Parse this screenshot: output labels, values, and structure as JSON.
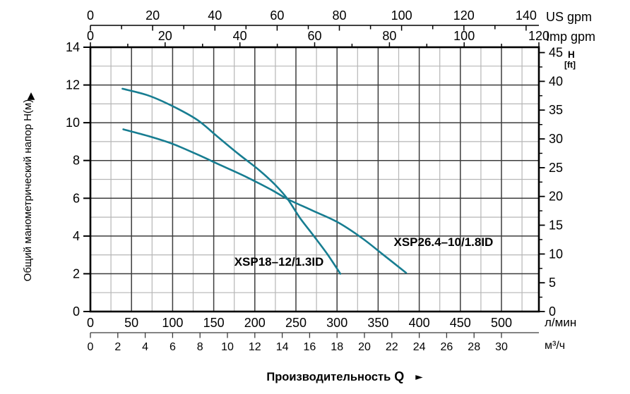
{
  "chart_data": {
    "type": "line",
    "x_range_lmin": [
      0,
      545.5
    ],
    "y_range_m": [
      0,
      14
    ],
    "axes": {
      "top_us_gpm": {
        "label": "US gpm",
        "tick_labels": [
          0,
          20,
          40,
          60,
          80,
          100,
          120,
          140
        ],
        "minor_step": 10,
        "max": 140
      },
      "top_imp_gpm": {
        "label": "Imp gpm",
        "tick_labels": [
          0,
          20,
          40,
          60,
          80,
          100,
          120
        ],
        "minor_step": 10,
        "max": 120
      },
      "left_head_m": {
        "label": "Общий манометрический напор Н(м)",
        "arrow": "▲",
        "tick_labels": [
          0,
          2,
          4,
          6,
          8,
          10,
          12,
          14
        ]
      },
      "right_head_ft": {
        "label": "H",
        "sublabel": "[ft]",
        "tick_labels": [
          0,
          5,
          10,
          15,
          20,
          25,
          30,
          35,
          40,
          45
        ],
        "minor_step": 2.5
      },
      "bottom_lmin": {
        "label": "л/мин",
        "tick_labels": [
          0,
          50,
          100,
          150,
          200,
          250,
          300,
          350,
          400,
          450,
          500
        ]
      },
      "bottom_m3h": {
        "label": "м³/ч",
        "tick_labels": [
          0,
          2,
          4,
          6,
          8,
          10,
          12,
          14,
          16,
          18,
          20,
          22,
          24,
          26,
          28,
          30
        ]
      }
    },
    "xlabel": {
      "text": "Производительность",
      "symbol": "Q",
      "arrow": "►"
    },
    "grid": {
      "major_x_step_lmin": 50,
      "minor_x_step_lmin": 25,
      "major_y_step_m": 2,
      "minor_y_step_m": 1
    },
    "series": [
      {
        "id": "xsp18",
        "name": "XSP18–12/1.3ID",
        "points_lmin_m": [
          [
            39,
            11.8
          ],
          [
            70,
            11.45
          ],
          [
            100,
            10.88
          ],
          [
            130,
            10.15
          ],
          [
            155,
            9.25
          ],
          [
            180,
            8.35
          ],
          [
            205,
            7.5
          ],
          [
            225,
            6.7
          ],
          [
            240,
            5.95
          ],
          [
            255,
            4.95
          ],
          [
            270,
            4.1
          ],
          [
            288,
            3.05
          ],
          [
            304,
            2.0
          ]
        ],
        "label_at_lmin_m": [
          175,
          2.43
        ]
      },
      {
        "id": "xsp26-4",
        "name": "XSP26.4–10/1.8ID",
        "points_lmin_m": [
          [
            40,
            9.65
          ],
          [
            70,
            9.3
          ],
          [
            100,
            8.88
          ],
          [
            130,
            8.32
          ],
          [
            160,
            7.72
          ],
          [
            190,
            7.12
          ],
          [
            220,
            6.45
          ],
          [
            240,
            5.95
          ],
          [
            270,
            5.35
          ],
          [
            300,
            4.75
          ],
          [
            330,
            3.9
          ],
          [
            355,
            3.05
          ],
          [
            384,
            2.05
          ]
        ],
        "label_at_lmin_m": [
          369,
          3.48
        ]
      }
    ],
    "colors": {
      "curve": "#177d91",
      "grid_major": "#3d3d3d",
      "grid_minor": "#b6b6b6",
      "axis": "#000000",
      "text": "#000000",
      "background": "#ffffff"
    }
  }
}
